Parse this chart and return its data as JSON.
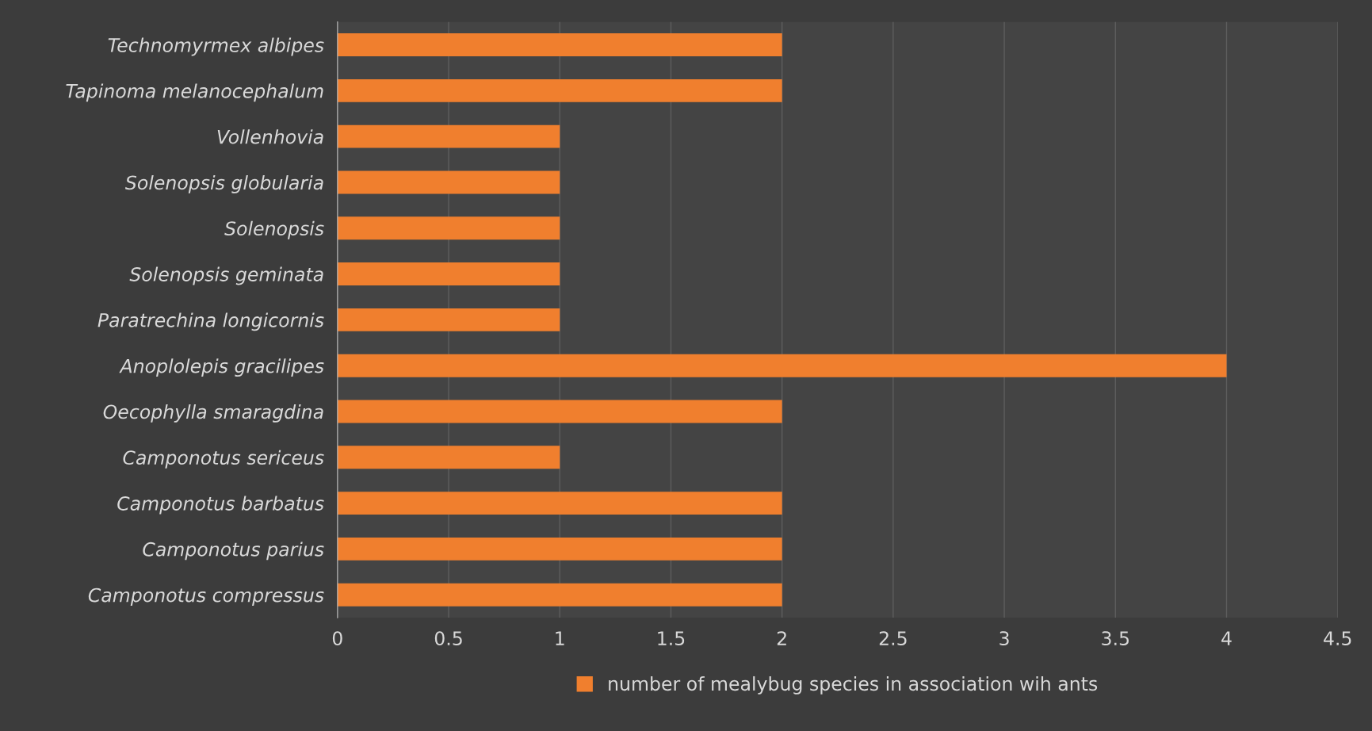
{
  "chart_data": {
    "type": "bar",
    "orientation": "horizontal",
    "categories": [
      "Technomyrmex albipes",
      "Tapinoma melanocephalum",
      "Vollenhovia",
      "Solenopsis globularia",
      "Solenopsis",
      "Solenopsis geminata",
      "Paratrechina longicornis",
      "Anoplolepis gracilipes",
      "Oecophylla smaragdina",
      "Camponotus sericeus",
      "Camponotus barbatus",
      "Camponotus parius",
      "Camponotus compressus"
    ],
    "series": [
      {
        "name": "number of mealybug species in association wih ants",
        "color": "#f07f2e",
        "values": [
          2,
          2,
          1,
          1,
          1,
          1,
          1,
          4,
          2,
          1,
          2,
          2,
          2
        ]
      }
    ],
    "xlim": [
      0,
      4.5
    ],
    "xticks": [
      0,
      0.5,
      1,
      1.5,
      2,
      2.5,
      3,
      3.5,
      4,
      4.5
    ],
    "grid": "x",
    "legend": "bottom"
  }
}
